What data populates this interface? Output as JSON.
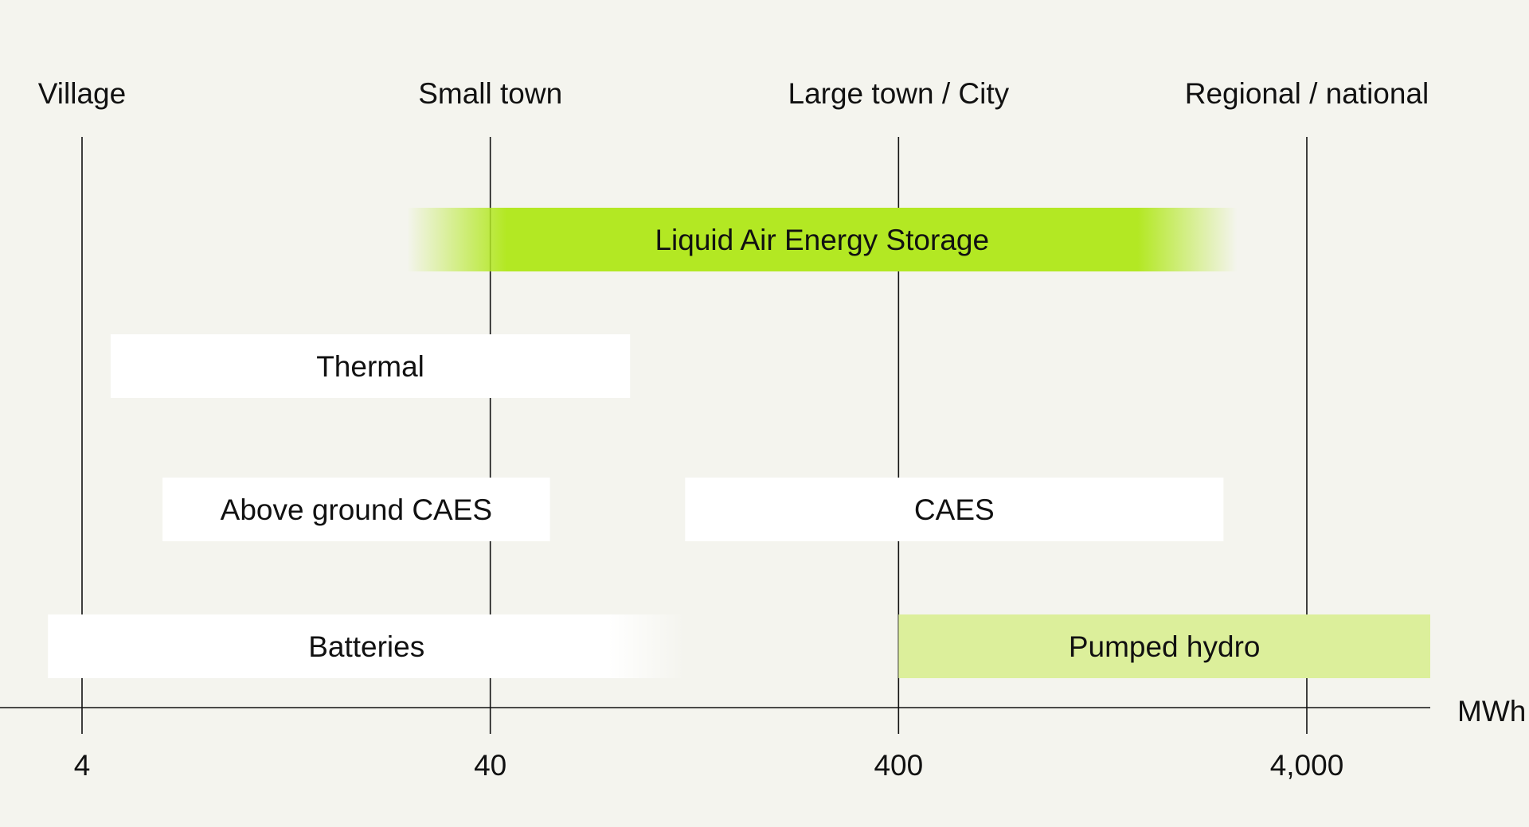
{
  "chart_data": {
    "type": "bar",
    "orientation": "horizontal",
    "x_scale": "log",
    "xlim": [
      2.4,
      9000
    ],
    "x_unit_label": "MWh",
    "ticks": [
      {
        "value": 4,
        "label": "4",
        "scale_label": "Village"
      },
      {
        "value": 40,
        "label": "40",
        "scale_label": "Small town"
      },
      {
        "value": 400,
        "label": "400",
        "scale_label": "Large town / City"
      },
      {
        "value": 4000,
        "label": "4,000",
        "scale_label": "Regional / national"
      }
    ],
    "bars": [
      {
        "label": "Liquid Air Energy Storage",
        "start": 25,
        "end": 2700,
        "color": "#b3e823",
        "fade_start": true,
        "fade_end": true
      },
      {
        "label": "Thermal",
        "start": 4.7,
        "end": 88,
        "color": "#ffffff",
        "fade_start": false,
        "fade_end": false
      },
      {
        "label": "Above ground CAES",
        "start": 6.3,
        "end": 56,
        "color": "#ffffff",
        "fade_start": false,
        "fade_end": false
      },
      {
        "label": "CAES",
        "start": 120,
        "end": 2500,
        "color": "#ffffff",
        "fade_start": false,
        "fade_end": false
      },
      {
        "label": "Batteries",
        "start": 3.3,
        "end": 120,
        "color": "#ffffff",
        "fade_start": false,
        "fade_end": true
      },
      {
        "label": "Pumped hydro",
        "start": 400,
        "end": 9000,
        "color": "#dcef9b",
        "fade_start": false,
        "fade_end": false
      }
    ],
    "title": "",
    "xlabel": "MWh",
    "ylabel": "",
    "grid": "vertical lines at ticks",
    "legend": "none"
  }
}
